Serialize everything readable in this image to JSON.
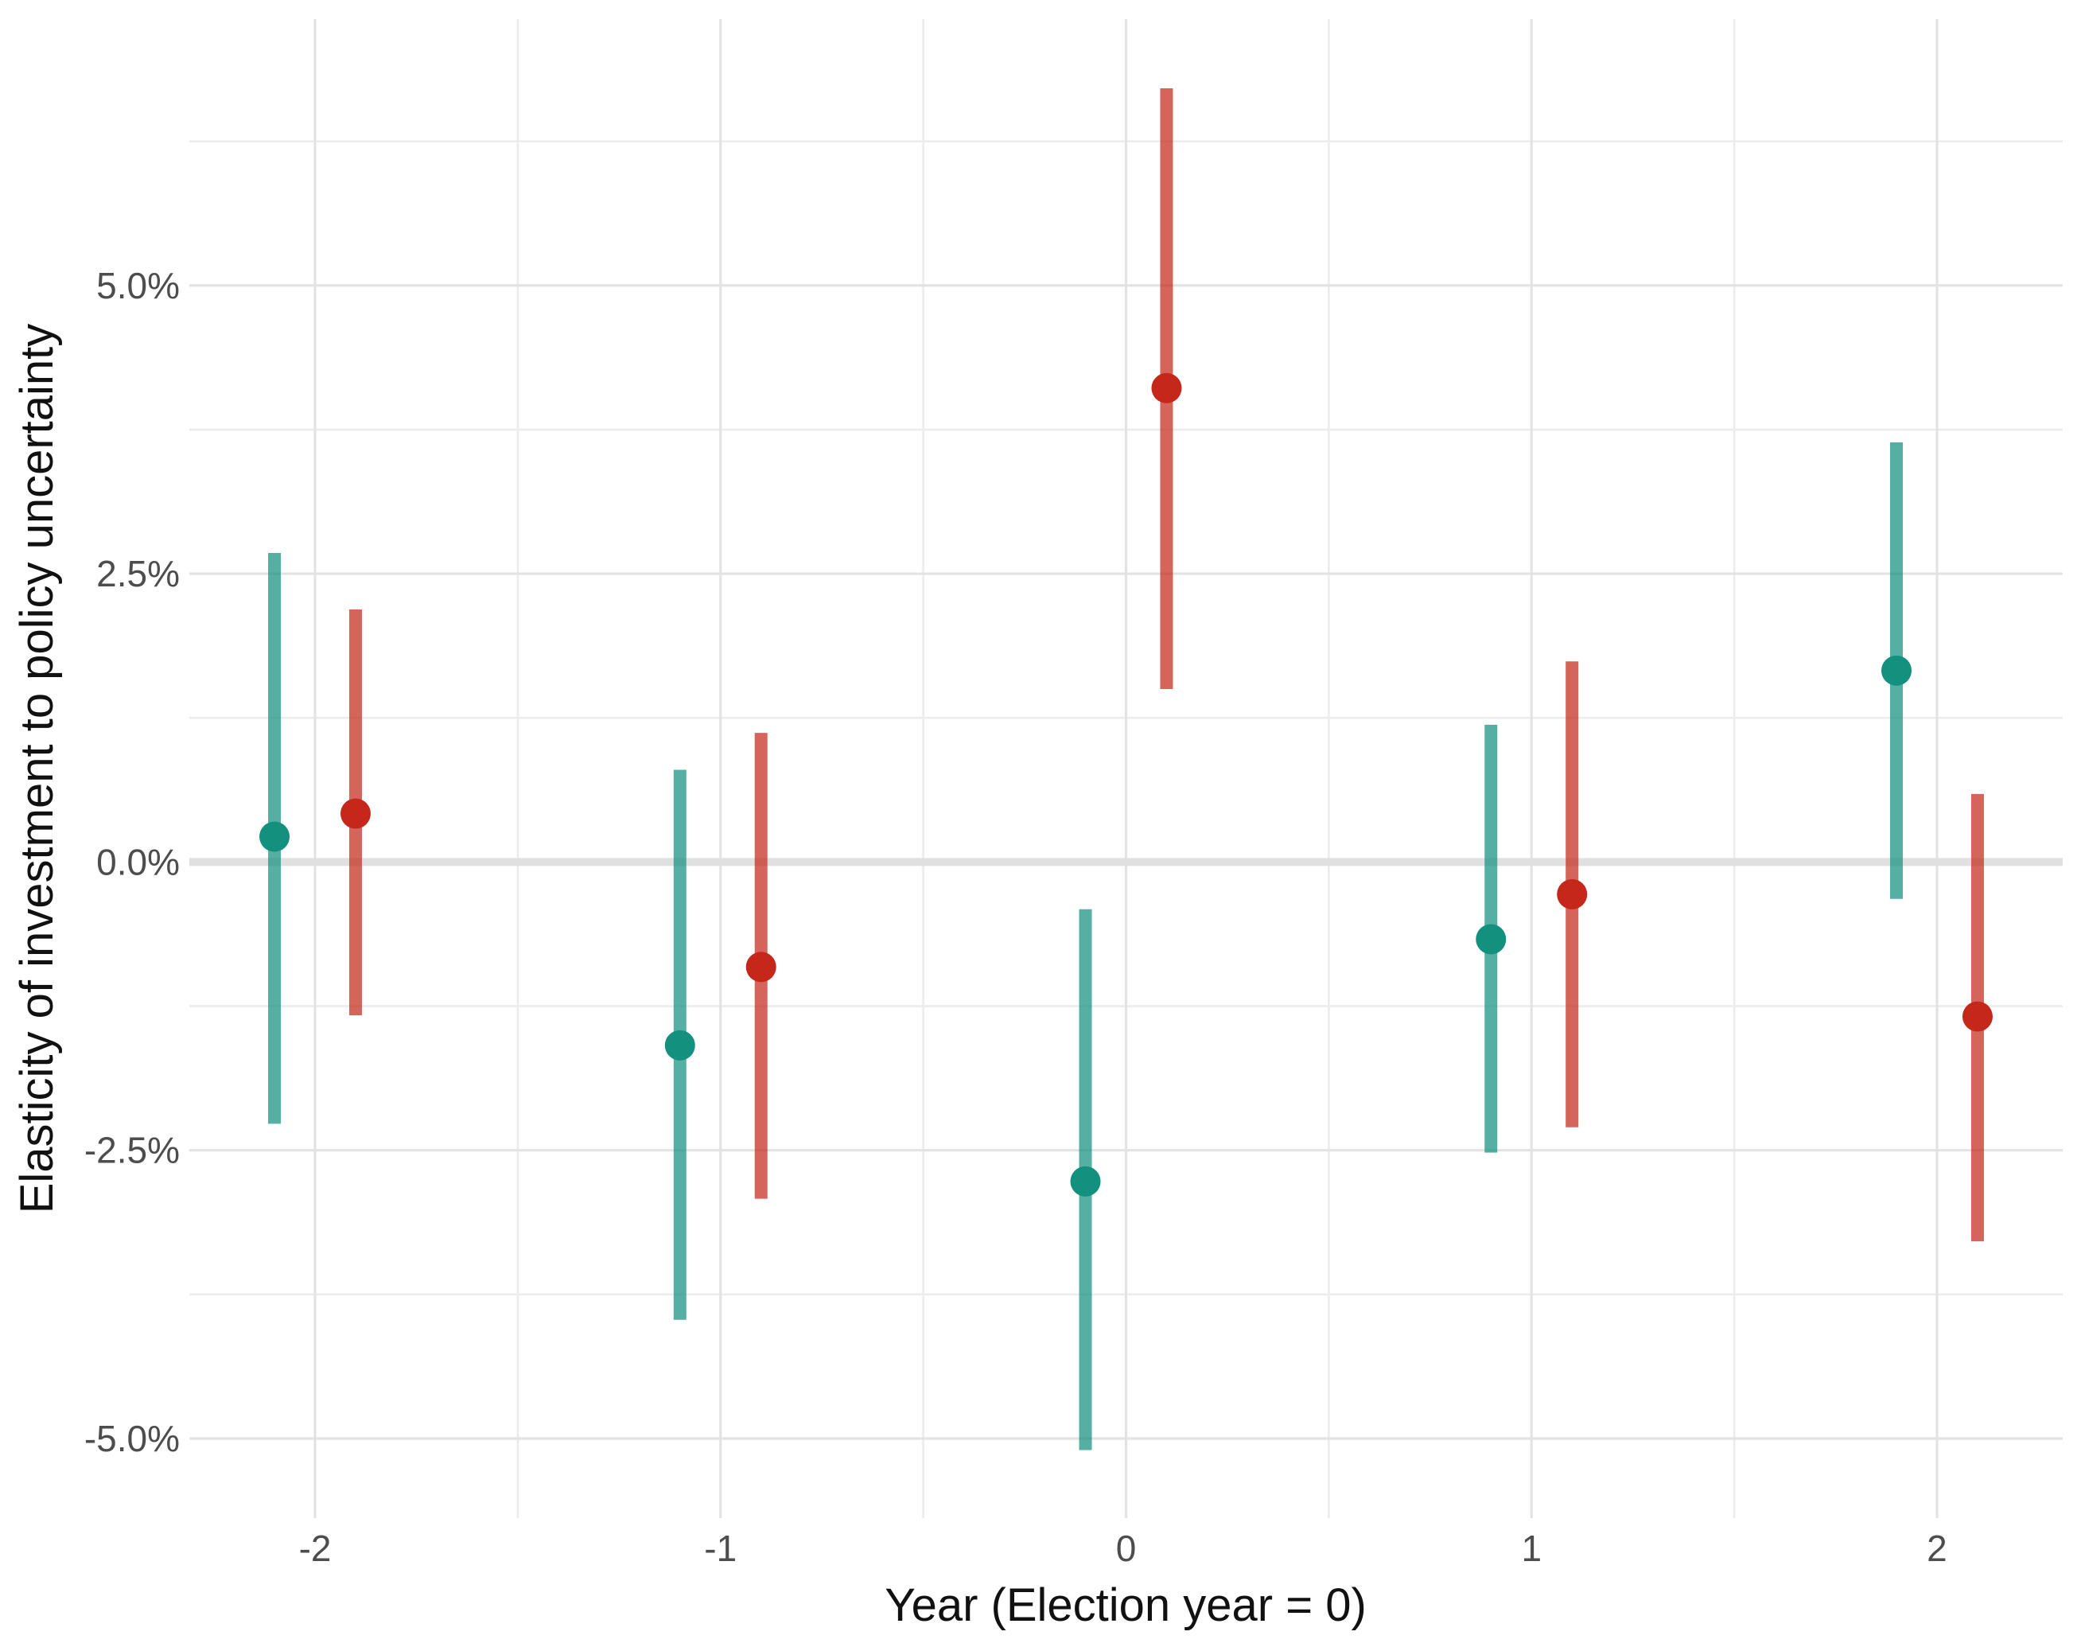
{
  "chart_data": {
    "type": "pointrange-scatter",
    "title": "",
    "xlabel": "Year (Election year = 0)",
    "ylabel": "Elasticity of investment to policy uncertainty",
    "x_axis": {
      "tick_values": [
        -2,
        -1,
        0,
        1,
        2
      ],
      "tick_labels": [
        "-2",
        "-1",
        "0",
        "1",
        "2"
      ],
      "minor_tick_values": [
        -1.5,
        -0.5,
        0.5,
        1.5
      ],
      "range": [
        -2.31,
        2.31
      ]
    },
    "y_axis": {
      "unit": "percent",
      "tick_values": [
        5.0,
        2.5,
        0.0,
        -2.5,
        -5.0
      ],
      "tick_labels": [
        "5.0%",
        "2.5%",
        "0.0%",
        "-2.5%",
        "-5.0%"
      ],
      "minor_tick_values": [
        6.25,
        3.75,
        1.25,
        -1.25,
        -3.75
      ],
      "range": [
        -5.69,
        7.31
      ]
    },
    "grid": true,
    "legend": "none",
    "reference_line_y": 0,
    "series": [
      {
        "name": "teal",
        "point_color": "#13907E",
        "bar_color": "#13907E",
        "bar_opacity": 0.72,
        "x_offset": -0.1,
        "points": [
          {
            "x": -2,
            "y": 0.22,
            "ymin": -2.27,
            "ymax": 2.68
          },
          {
            "x": -1,
            "y": -1.59,
            "ymin": -3.97,
            "ymax": 0.8
          },
          {
            "x": 0,
            "y": -2.77,
            "ymin": -5.1,
            "ymax": -0.41
          },
          {
            "x": 1,
            "y": -0.67,
            "ymin": -2.52,
            "ymax": 1.19
          },
          {
            "x": 2,
            "y": 1.66,
            "ymin": -0.32,
            "ymax": 3.64
          }
        ]
      },
      {
        "name": "red",
        "point_color": "#C5281B",
        "bar_color": "#C5281B",
        "bar_opacity": 0.72,
        "x_offset": 0.1,
        "points": [
          {
            "x": -2,
            "y": 0.42,
            "ymin": -1.33,
            "ymax": 2.19
          },
          {
            "x": -1,
            "y": -0.91,
            "ymin": -2.92,
            "ymax": 1.12
          },
          {
            "x": 0,
            "y": 4.11,
            "ymin": 1.5,
            "ymax": 6.71
          },
          {
            "x": 1,
            "y": -0.28,
            "ymin": -2.3,
            "ymax": 1.74
          },
          {
            "x": 2,
            "y": -1.34,
            "ymin": -3.29,
            "ymax": 0.59
          }
        ]
      }
    ],
    "style_colors": {
      "background": "#ffffff",
      "major_gridline": "#E3E3E3",
      "minor_gridline": "#ECECEC",
      "zero_line": "#E0E0E0",
      "tick_label": "#4d4d4d",
      "axis_title": "#111111"
    }
  }
}
